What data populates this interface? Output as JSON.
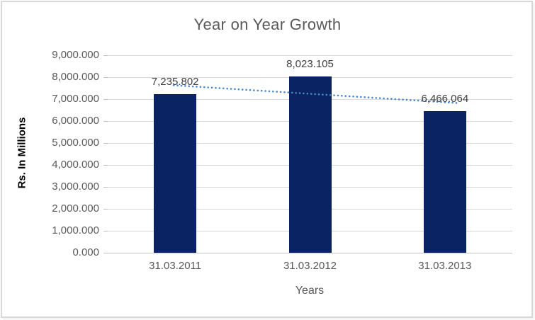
{
  "chart_data": {
    "type": "bar",
    "title": "Year on Year Growth",
    "xlabel": "Years",
    "ylabel": "Rs. In Millions",
    "categories": [
      "31.03.2011",
      "31.03.2012",
      "31.03.2013"
    ],
    "values": [
      7235.802,
      8023.105,
      6466.064
    ],
    "data_labels": [
      "7,235.802",
      "8,023.105",
      "6,466.064"
    ],
    "y_tick_values": [
      0,
      1000,
      2000,
      3000,
      4000,
      5000,
      6000,
      7000,
      8000,
      9000
    ],
    "y_tick_labels": [
      "0.000",
      "1,000.000",
      "2,000.000",
      "3,000.000",
      "4,000.000",
      "5,000.000",
      "6,000.000",
      "7,000.000",
      "8,000.000",
      "9,000.000"
    ],
    "ylim": [
      0,
      9000
    ],
    "grid": true,
    "legend": "none",
    "bar_color": "#0a2463",
    "trendline": {
      "type": "linear",
      "style": "dotted",
      "color": "#4a86c8"
    }
  }
}
